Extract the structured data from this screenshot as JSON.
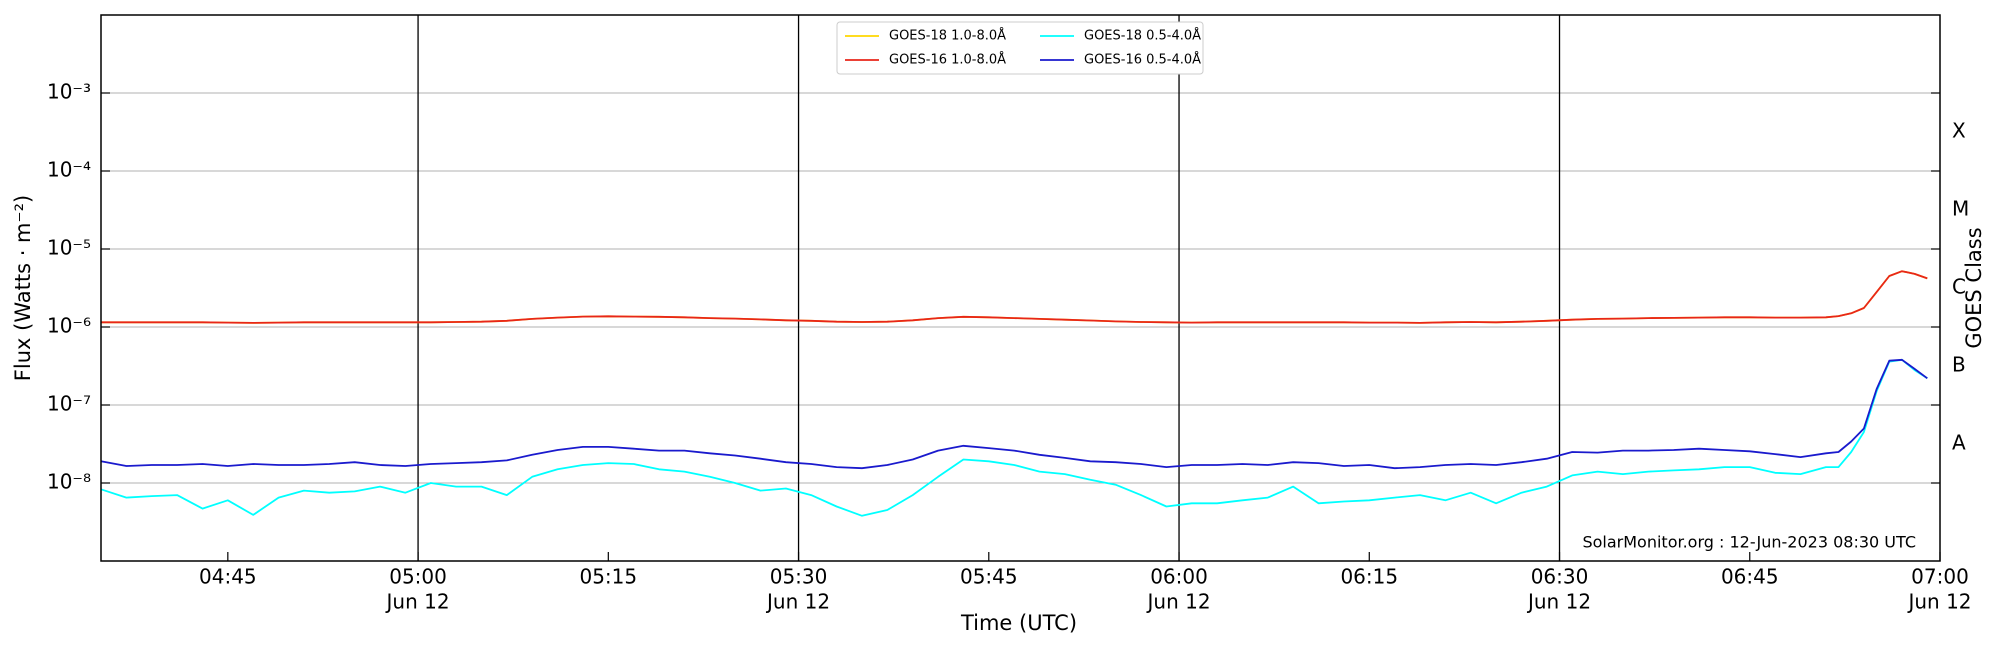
{
  "chart_data": {
    "type": "line",
    "x": [
      "04:35",
      "04:37",
      "04:39",
      "04:41",
      "04:43",
      "04:45",
      "04:47",
      "04:49",
      "04:51",
      "04:53",
      "04:55",
      "04:57",
      "04:59",
      "05:01",
      "05:03",
      "05:05",
      "05:07",
      "05:09",
      "05:11",
      "05:13",
      "05:15",
      "05:17",
      "05:19",
      "05:21",
      "05:23",
      "05:25",
      "05:27",
      "05:29",
      "05:31",
      "05:33",
      "05:35",
      "05:37",
      "05:39",
      "05:41",
      "05:43",
      "05:45",
      "05:47",
      "05:49",
      "05:51",
      "05:53",
      "05:55",
      "05:57",
      "05:59",
      "06:01",
      "06:03",
      "06:05",
      "06:07",
      "06:09",
      "06:11",
      "06:13",
      "06:15",
      "06:17",
      "06:19",
      "06:21",
      "06:23",
      "06:25",
      "06:27",
      "06:29",
      "06:31",
      "06:33",
      "06:35",
      "06:37",
      "06:39",
      "06:41",
      "06:43",
      "06:45",
      "06:47",
      "06:49",
      "06:51",
      "06:52",
      "06:53",
      "06:54",
      "06:55",
      "06:56",
      "06:57",
      "06:58",
      "06:59"
    ],
    "series": [
      {
        "name": "GOES-18 1.0-8.0Å",
        "color": "#ffd700",
        "values": [
          1.15e-06,
          1.15e-06,
          1.15e-06,
          1.15e-06,
          1.15e-06,
          1.14e-06,
          1.13e-06,
          1.14e-06,
          1.15e-06,
          1.15e-06,
          1.15e-06,
          1.15e-06,
          1.15e-06,
          1.15e-06,
          1.16e-06,
          1.17e-06,
          1.2e-06,
          1.27e-06,
          1.32e-06,
          1.36e-06,
          1.37e-06,
          1.36e-06,
          1.35e-06,
          1.33e-06,
          1.3e-06,
          1.28e-06,
          1.25e-06,
          1.22e-06,
          1.2e-06,
          1.17e-06,
          1.16e-06,
          1.17e-06,
          1.22e-06,
          1.3e-06,
          1.35e-06,
          1.33e-06,
          1.3e-06,
          1.27e-06,
          1.24e-06,
          1.21e-06,
          1.18e-06,
          1.16e-06,
          1.15e-06,
          1.14e-06,
          1.15e-06,
          1.15e-06,
          1.15e-06,
          1.15e-06,
          1.15e-06,
          1.15e-06,
          1.14e-06,
          1.14e-06,
          1.13e-06,
          1.15e-06,
          1.16e-06,
          1.15e-06,
          1.17e-06,
          1.2e-06,
          1.24e-06,
          1.27e-06,
          1.28e-06,
          1.3e-06,
          1.31e-06,
          1.32e-06,
          1.33e-06,
          1.33e-06,
          1.32e-06,
          1.32e-06,
          1.33e-06,
          1.38e-06,
          1.5e-06,
          1.75e-06,
          2.8e-06,
          4.5e-06,
          5.2e-06,
          4.8e-06,
          4.2e-06
        ]
      },
      {
        "name": "GOES-16 1.0-8.0Å",
        "color": "#e8261a",
        "values": [
          1.15e-06,
          1.15e-06,
          1.15e-06,
          1.15e-06,
          1.15e-06,
          1.14e-06,
          1.13e-06,
          1.14e-06,
          1.15e-06,
          1.15e-06,
          1.15e-06,
          1.15e-06,
          1.15e-06,
          1.15e-06,
          1.16e-06,
          1.17e-06,
          1.2e-06,
          1.27e-06,
          1.32e-06,
          1.36e-06,
          1.37e-06,
          1.36e-06,
          1.35e-06,
          1.33e-06,
          1.3e-06,
          1.28e-06,
          1.25e-06,
          1.22e-06,
          1.2e-06,
          1.17e-06,
          1.16e-06,
          1.17e-06,
          1.22e-06,
          1.3e-06,
          1.35e-06,
          1.33e-06,
          1.3e-06,
          1.27e-06,
          1.24e-06,
          1.21e-06,
          1.18e-06,
          1.16e-06,
          1.15e-06,
          1.14e-06,
          1.15e-06,
          1.15e-06,
          1.15e-06,
          1.15e-06,
          1.15e-06,
          1.15e-06,
          1.14e-06,
          1.14e-06,
          1.13e-06,
          1.15e-06,
          1.16e-06,
          1.15e-06,
          1.17e-06,
          1.2e-06,
          1.24e-06,
          1.27e-06,
          1.28e-06,
          1.3e-06,
          1.31e-06,
          1.32e-06,
          1.33e-06,
          1.33e-06,
          1.32e-06,
          1.32e-06,
          1.33e-06,
          1.38e-06,
          1.5e-06,
          1.75e-06,
          2.8e-06,
          4.5e-06,
          5.2e-06,
          4.8e-06,
          4.2e-06
        ]
      },
      {
        "name": "GOES-18 0.5-4.0Å",
        "color": "#00ffff",
        "values": [
          8.3e-09,
          6.5e-09,
          6.8e-09,
          7e-09,
          4.7e-09,
          6e-09,
          3.9e-09,
          6.5e-09,
          8e-09,
          7.5e-09,
          7.8e-09,
          9e-09,
          7.5e-09,
          1e-08,
          9e-09,
          9e-09,
          7e-09,
          1.2e-08,
          1.5e-08,
          1.7e-08,
          1.8e-08,
          1.75e-08,
          1.5e-08,
          1.4e-08,
          1.2e-08,
          1e-08,
          8e-09,
          8.5e-09,
          7e-09,
          5e-09,
          3.8e-09,
          4.5e-09,
          7e-09,
          1.2e-08,
          2e-08,
          1.9e-08,
          1.7e-08,
          1.4e-08,
          1.3e-08,
          1.1e-08,
          9.5e-09,
          7e-09,
          5e-09,
          5.5e-09,
          5.5e-09,
          6e-09,
          6.5e-09,
          9e-09,
          5.5e-09,
          5.8e-09,
          6e-09,
          6.5e-09,
          7e-09,
          6e-09,
          7.5e-09,
          5.5e-09,
          7.5e-09,
          9e-09,
          1.25e-08,
          1.4e-08,
          1.3e-08,
          1.4e-08,
          1.45e-08,
          1.5e-08,
          1.6e-08,
          1.6e-08,
          1.35e-08,
          1.3e-08,
          1.6e-08,
          1.6e-08,
          2.5e-08,
          4.5e-08,
          1.5e-07,
          3.6e-07,
          3.8e-07,
          2.8e-07,
          2.2e-07
        ]
      },
      {
        "name": "GOES-16 0.5-4.0Å",
        "color": "#1a1acd",
        "values": [
          1.9e-08,
          1.65e-08,
          1.7e-08,
          1.7e-08,
          1.75e-08,
          1.65e-08,
          1.75e-08,
          1.7e-08,
          1.7e-08,
          1.75e-08,
          1.85e-08,
          1.7e-08,
          1.65e-08,
          1.75e-08,
          1.8e-08,
          1.85e-08,
          1.95e-08,
          2.3e-08,
          2.65e-08,
          2.9e-08,
          2.9e-08,
          2.75e-08,
          2.6e-08,
          2.6e-08,
          2.4e-08,
          2.25e-08,
          2.05e-08,
          1.85e-08,
          1.75e-08,
          1.6e-08,
          1.55e-08,
          1.7e-08,
          2e-08,
          2.6e-08,
          3e-08,
          2.8e-08,
          2.6e-08,
          2.3e-08,
          2.1e-08,
          1.9e-08,
          1.85e-08,
          1.75e-08,
          1.6e-08,
          1.7e-08,
          1.7e-08,
          1.75e-08,
          1.7e-08,
          1.85e-08,
          1.8e-08,
          1.65e-08,
          1.7e-08,
          1.55e-08,
          1.6e-08,
          1.7e-08,
          1.75e-08,
          1.7e-08,
          1.85e-08,
          2.05e-08,
          2.5e-08,
          2.45e-08,
          2.6e-08,
          2.6e-08,
          2.65e-08,
          2.75e-08,
          2.65e-08,
          2.55e-08,
          2.35e-08,
          2.15e-08,
          2.4e-08,
          2.5e-08,
          3.4e-08,
          5e-08,
          1.6e-07,
          3.7e-07,
          3.8e-07,
          2.9e-07,
          2.2e-07
        ]
      }
    ],
    "xlim": [
      "04:35",
      "07:00"
    ],
    "xticks": [
      "04:45",
      {
        "value": "05:00",
        "label": [
          "05:00",
          "Jun 12"
        ]
      },
      "05:15",
      {
        "value": "05:30",
        "label": [
          "05:30",
          "Jun 12"
        ]
      },
      "05:45",
      {
        "value": "06:00",
        "label": [
          "06:00",
          "Jun 12"
        ]
      },
      "06:15",
      {
        "value": "06:30",
        "label": [
          "06:30",
          "Jun 12"
        ]
      },
      "06:45",
      {
        "value": "07:00",
        "label": [
          "07:00",
          "Jun 12"
        ]
      }
    ],
    "ylim": [
      1e-09,
      0.01
    ],
    "yscale": "log",
    "yticks": [
      {
        "value": 1e-08,
        "label": "10⁻⁸"
      },
      {
        "value": 1e-07,
        "label": "10⁻⁷"
      },
      {
        "value": 1e-06,
        "label": "10⁻⁶"
      },
      {
        "value": 1e-05,
        "label": "10⁻⁵"
      },
      {
        "value": 0.0001,
        "label": "10⁻⁴"
      },
      {
        "value": 0.001,
        "label": "10⁻³"
      }
    ],
    "class_ticks": [
      {
        "value": 3.1623e-08,
        "label": "A"
      },
      {
        "value": 3.1623e-07,
        "label": "B"
      },
      {
        "value": 3.1623e-06,
        "label": "C"
      },
      {
        "value": 3.1623e-05,
        "label": "M"
      },
      {
        "value": 0.00031623,
        "label": "X"
      }
    ],
    "grid": true,
    "date_gridlines": true,
    "legend": "upper center",
    "xlabel": "Time (UTC)",
    "ylabel": "Flux (Watts · m⁻²)",
    "y2label": "GOES Class",
    "annotation": "SolarMonitor.org : 12-Jun-2023 08:30 UTC"
  }
}
